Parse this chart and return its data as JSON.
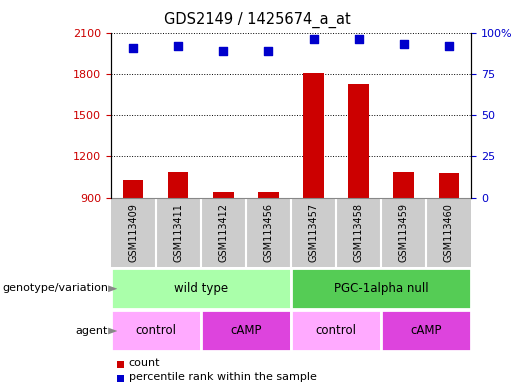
{
  "title": "GDS2149 / 1425674_a_at",
  "samples": [
    "GSM113409",
    "GSM113411",
    "GSM113412",
    "GSM113456",
    "GSM113457",
    "GSM113458",
    "GSM113459",
    "GSM113460"
  ],
  "counts": [
    1030,
    1090,
    940,
    945,
    1810,
    1730,
    1085,
    1080
  ],
  "percentile_ranks": [
    91,
    92,
    89,
    89,
    96,
    96,
    93,
    92
  ],
  "ylim_left": [
    900,
    2100
  ],
  "ylim_right": [
    0,
    100
  ],
  "yticks_left": [
    900,
    1200,
    1500,
    1800,
    2100
  ],
  "yticks_right": [
    0,
    25,
    50,
    75,
    100
  ],
  "bar_color": "#cc0000",
  "dot_color": "#0000cc",
  "genotype_groups": [
    {
      "label": "wild type",
      "start": 0,
      "end": 4,
      "color": "#aaffaa"
    },
    {
      "label": "PGC-1alpha null",
      "start": 4,
      "end": 8,
      "color": "#55cc55"
    }
  ],
  "agent_groups": [
    {
      "label": "control",
      "start": 0,
      "end": 2,
      "color": "#ffaaff"
    },
    {
      "label": "cAMP",
      "start": 2,
      "end": 4,
      "color": "#dd44dd"
    },
    {
      "label": "control",
      "start": 4,
      "end": 6,
      "color": "#ffaaff"
    },
    {
      "label": "cAMP",
      "start": 6,
      "end": 8,
      "color": "#dd44dd"
    }
  ],
  "legend_count_label": "count",
  "legend_percentile_label": "percentile rank within the sample",
  "genotype_label": "genotype/variation",
  "agent_label": "agent",
  "bar_color_legend": "#cc0000",
  "dot_color_legend": "#0000cc",
  "tick_color_left": "#cc0000",
  "tick_color_right": "#0000cc",
  "sample_box_color": "#cccccc",
  "sample_box_border": "#999999"
}
